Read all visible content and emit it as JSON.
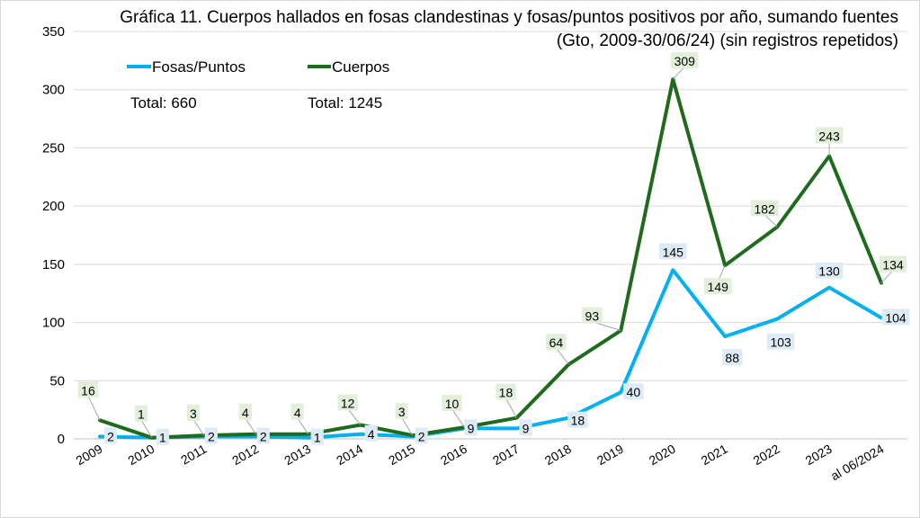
{
  "chart_data": {
    "type": "line",
    "title_line1": "Gráfica 11. Cuerpos hallados en fosas clandestinas y fosas/puntos positivos por año, sumando fuentes",
    "title_line2": "(Gto, 2009-30/06/24) (sin registros repetidos)",
    "categories": [
      "2009",
      "2010",
      "2011",
      "2012",
      "2013",
      "2014",
      "2015",
      "2016",
      "2017",
      "2018",
      "2019",
      "2020",
      "2021",
      "2022",
      "2023",
      "al 06/2024"
    ],
    "ylim": [
      0,
      350
    ],
    "yticks": [
      "0",
      "50",
      "100",
      "150",
      "200",
      "250",
      "300",
      "350"
    ],
    "grid": true,
    "legend_placement": "top-left",
    "series": [
      {
        "name": "Fosas/Puntos",
        "color": "#00B0F0",
        "label_bg": "#DDEBF7",
        "total_label": "Total: 660",
        "values": [
          2,
          1,
          2,
          2,
          1,
          4,
          2,
          9,
          9,
          18,
          40,
          145,
          88,
          103,
          130,
          104
        ]
      },
      {
        "name": "Cuerpos",
        "color": "#1E6B1E",
        "label_bg": "#E2EFDA",
        "total_label": "Total: 1245",
        "values": [
          16,
          1,
          3,
          4,
          4,
          12,
          3,
          10,
          18,
          64,
          93,
          309,
          149,
          182,
          243,
          134
        ]
      }
    ]
  }
}
